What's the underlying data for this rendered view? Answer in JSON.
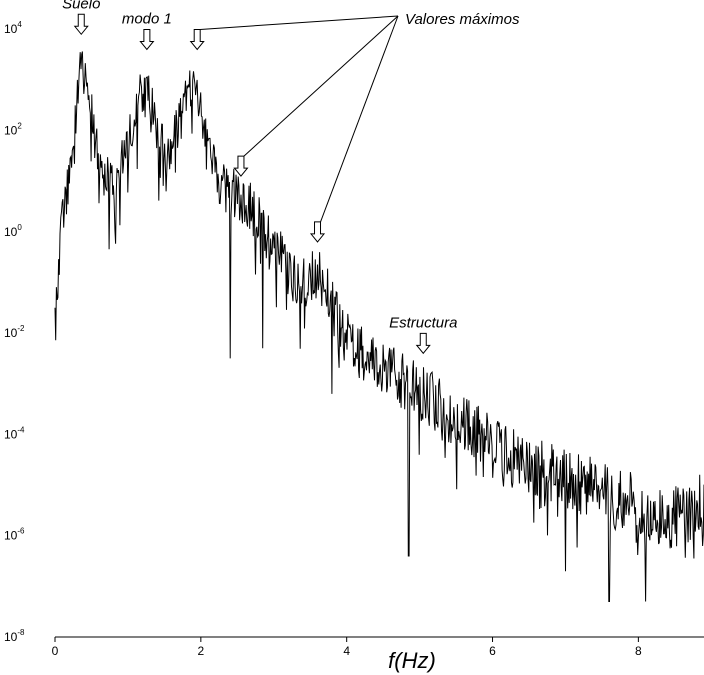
{
  "chart_data": {
    "type": "line",
    "title": "",
    "xlabel": "f(Hz)",
    "ylabel": "",
    "xlim": [
      0,
      8.9
    ],
    "ylim_log10": [
      -8,
      4.3
    ],
    "y_scale": "log",
    "grid": false,
    "legend": "none",
    "line_color": "#000000",
    "x_ticks": [
      {
        "value": 0,
        "label": "0"
      },
      {
        "value": 2,
        "label": "2"
      },
      {
        "value": 4,
        "label": "4"
      },
      {
        "value": 6,
        "label": "6"
      },
      {
        "value": 8,
        "label": "8"
      }
    ],
    "y_ticks": [
      {
        "value": 4,
        "base": "10",
        "exp": "4"
      },
      {
        "value": 2,
        "base": "10",
        "exp": "2"
      },
      {
        "value": 0,
        "base": "10",
        "exp": "0"
      },
      {
        "value": -2,
        "base": "10",
        "exp": "-2"
      },
      {
        "value": -4,
        "base": "10",
        "exp": "-4"
      },
      {
        "value": -6,
        "base": "10",
        "exp": "-6"
      },
      {
        "value": -8,
        "base": "10",
        "exp": "-8"
      }
    ],
    "envelope_log10": [
      [
        0.0,
        -1.5
      ],
      [
        0.1,
        0.8
      ],
      [
        0.2,
        1.5
      ],
      [
        0.3,
        3.0
      ],
      [
        0.36,
        3.8
      ],
      [
        0.42,
        3.5
      ],
      [
        0.5,
        2.8
      ],
      [
        0.6,
        1.8
      ],
      [
        0.7,
        1.5
      ],
      [
        0.8,
        1.4
      ],
      [
        0.9,
        1.9
      ],
      [
        1.0,
        2.2
      ],
      [
        1.1,
        2.8
      ],
      [
        1.2,
        3.3
      ],
      [
        1.26,
        3.5
      ],
      [
        1.32,
        3.0
      ],
      [
        1.45,
        2.3
      ],
      [
        1.55,
        2.0
      ],
      [
        1.65,
        2.4
      ],
      [
        1.75,
        2.9
      ],
      [
        1.85,
        3.2
      ],
      [
        1.92,
        3.5
      ],
      [
        2.0,
        2.8
      ],
      [
        2.1,
        2.0
      ],
      [
        2.3,
        1.4
      ],
      [
        2.5,
        1.2
      ],
      [
        2.6,
        1.1
      ],
      [
        2.8,
        0.8
      ],
      [
        3.0,
        0.3
      ],
      [
        3.3,
        -0.5
      ],
      [
        3.6,
        -0.3
      ],
      [
        3.8,
        -0.9
      ],
      [
        4.0,
        -1.6
      ],
      [
        4.4,
        -2.1
      ],
      [
        4.8,
        -2.4
      ],
      [
        5.2,
        -2.8
      ],
      [
        5.6,
        -3.2
      ],
      [
        6.0,
        -3.6
      ],
      [
        6.5,
        -4.0
      ],
      [
        7.0,
        -4.3
      ],
      [
        7.5,
        -4.5
      ],
      [
        8.0,
        -4.8
      ],
      [
        8.3,
        -5.1
      ],
      [
        8.6,
        -4.9
      ],
      [
        8.9,
        -4.7
      ]
    ],
    "dips_log10": [
      {
        "x": 0.0,
        "y": -1.5
      },
      {
        "x": 1.52,
        "y": 0.8
      },
      {
        "x": 2.4,
        "y": -2.5
      },
      {
        "x": 2.85,
        "y": -2.3
      },
      {
        "x": 3.8,
        "y": -3.2
      },
      {
        "x": 4.85,
        "y": -6.4
      },
      {
        "x": 7.0,
        "y": -6.7
      },
      {
        "x": 7.6,
        "y": -7.3
      },
      {
        "x": 8.1,
        "y": -7.3
      }
    ],
    "annotations": [
      {
        "text": "Suelo",
        "x": 0.36,
        "y_log10": 3.9
      },
      {
        "text": "modo 1",
        "x": 1.26,
        "y_log10": 3.6
      },
      {
        "text": "Valores máximos",
        "targets": [
          {
            "x": 1.95,
            "y_log10": 3.6
          },
          {
            "x": 2.55,
            "y_log10": 1.1
          },
          {
            "x": 3.6,
            "y_log10": -0.2
          }
        ]
      },
      {
        "text": "Estructura",
        "x": 5.05,
        "y_log10": -2.4
      }
    ]
  }
}
